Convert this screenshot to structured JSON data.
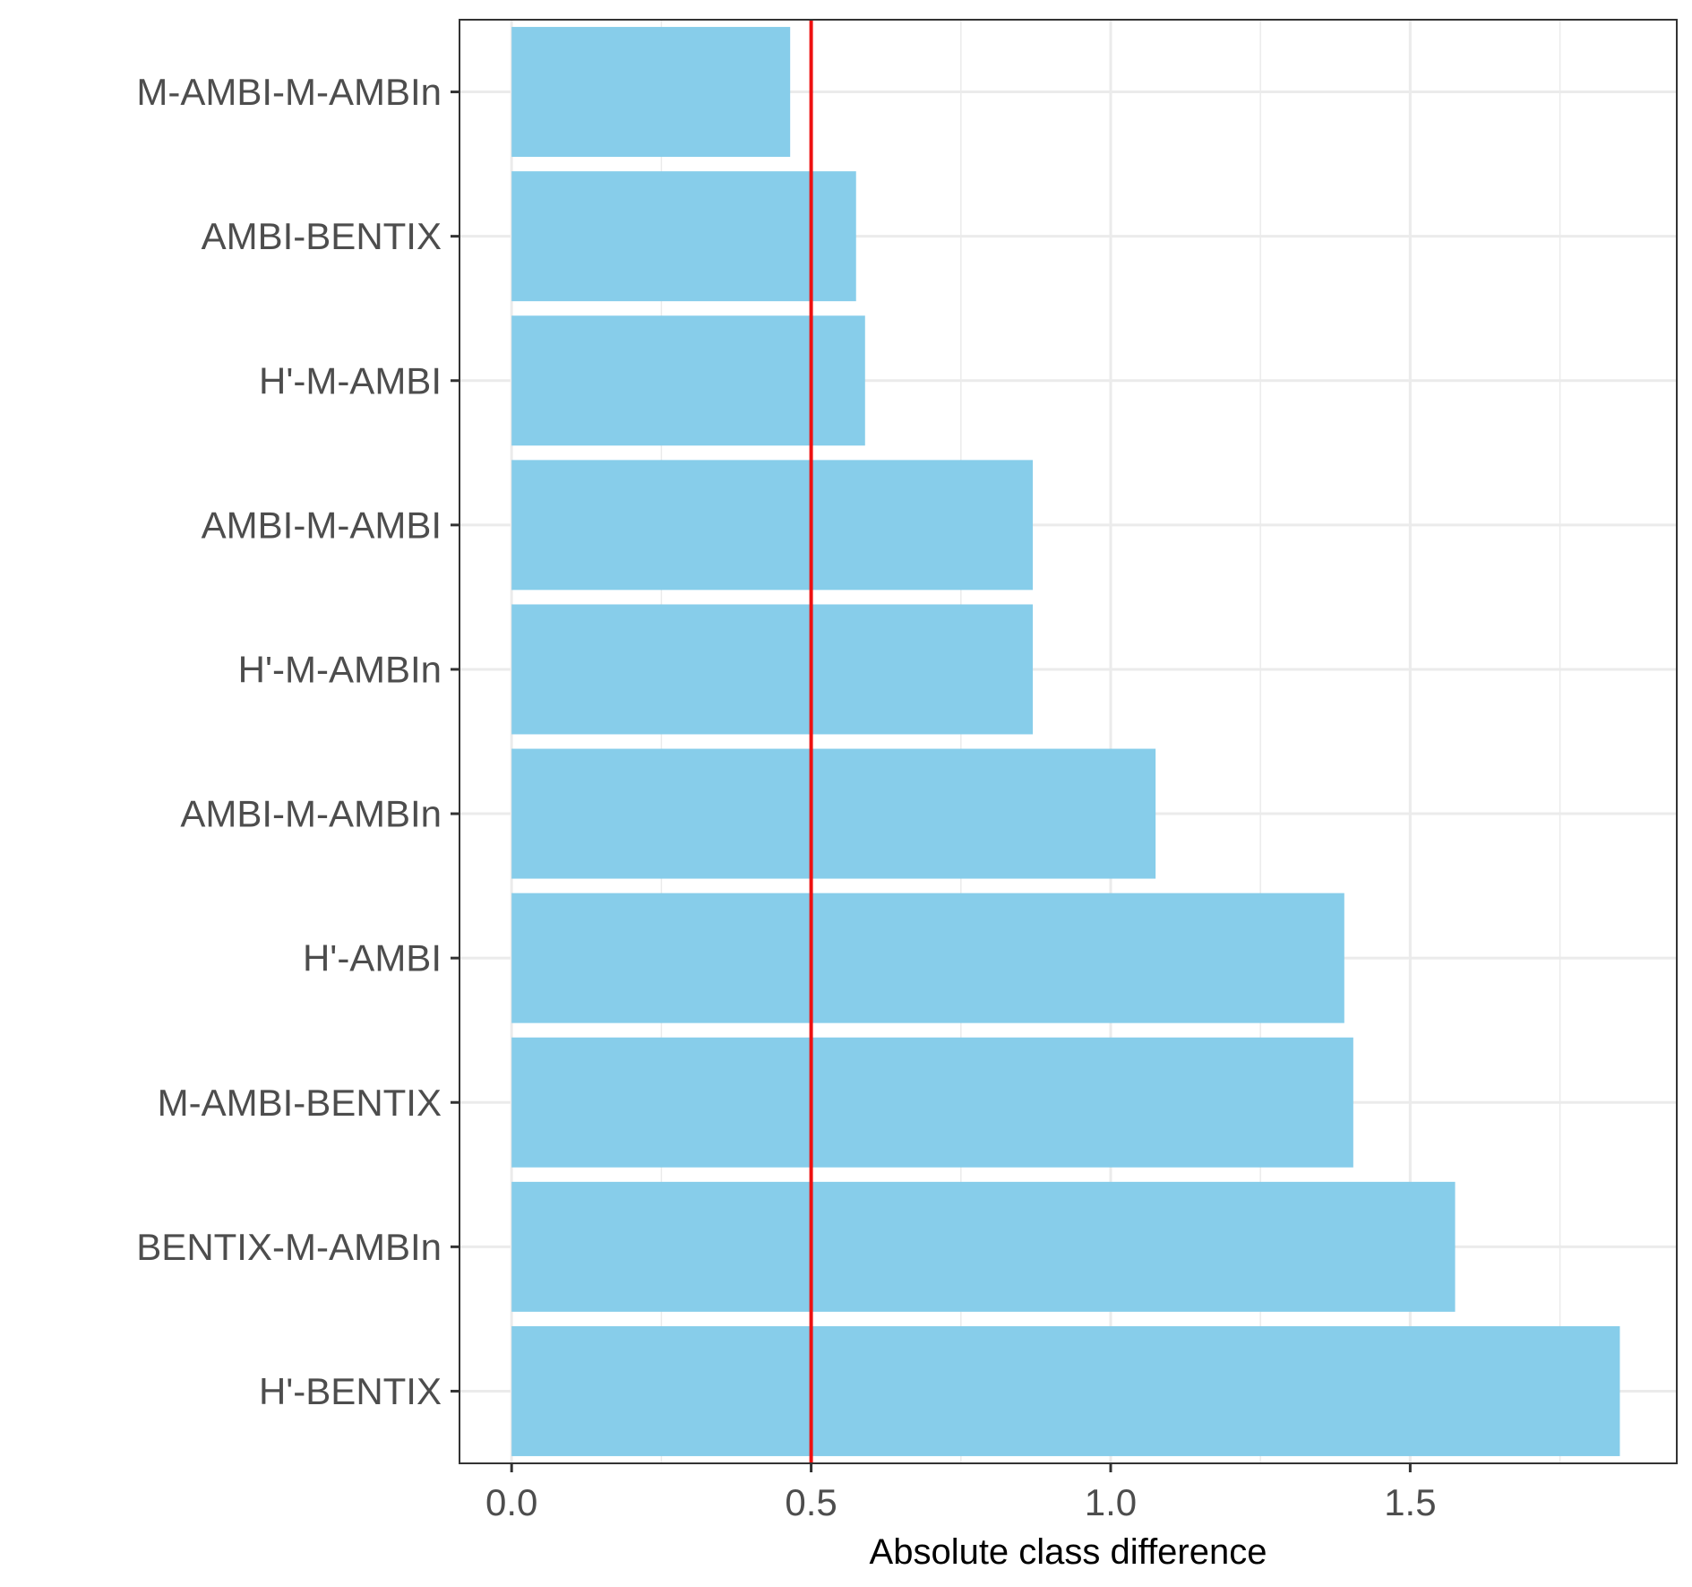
{
  "chart_data": {
    "type": "bar",
    "orientation": "horizontal",
    "title": "",
    "xlabel": "Absolute class difference",
    "ylabel": "",
    "categories": [
      "M-AMBI-M-AMBIn",
      "AMBI-BENTIX",
      "H'-M-AMBI",
      "AMBI-M-AMBI",
      "H'-M-AMBIn",
      "AMBI-M-AMBIn",
      "H'-AMBI",
      "M-AMBI-BENTIX",
      "BENTIX-M-AMBIn",
      "H'-BENTIX"
    ],
    "values": [
      0.465,
      0.575,
      0.59,
      0.87,
      0.87,
      1.075,
      1.39,
      1.405,
      1.575,
      1.85
    ],
    "xlim": [
      -0.087,
      1.945
    ],
    "xticks": [
      0.0,
      0.5,
      1.0,
      1.5
    ],
    "xtick_labels": [
      "0.0",
      "0.5",
      "1.0",
      "1.5"
    ],
    "reference_line": {
      "x": 0.5,
      "color": "#ee1111"
    },
    "bar_color": "#87cdea",
    "grid": true,
    "legend": "none"
  }
}
